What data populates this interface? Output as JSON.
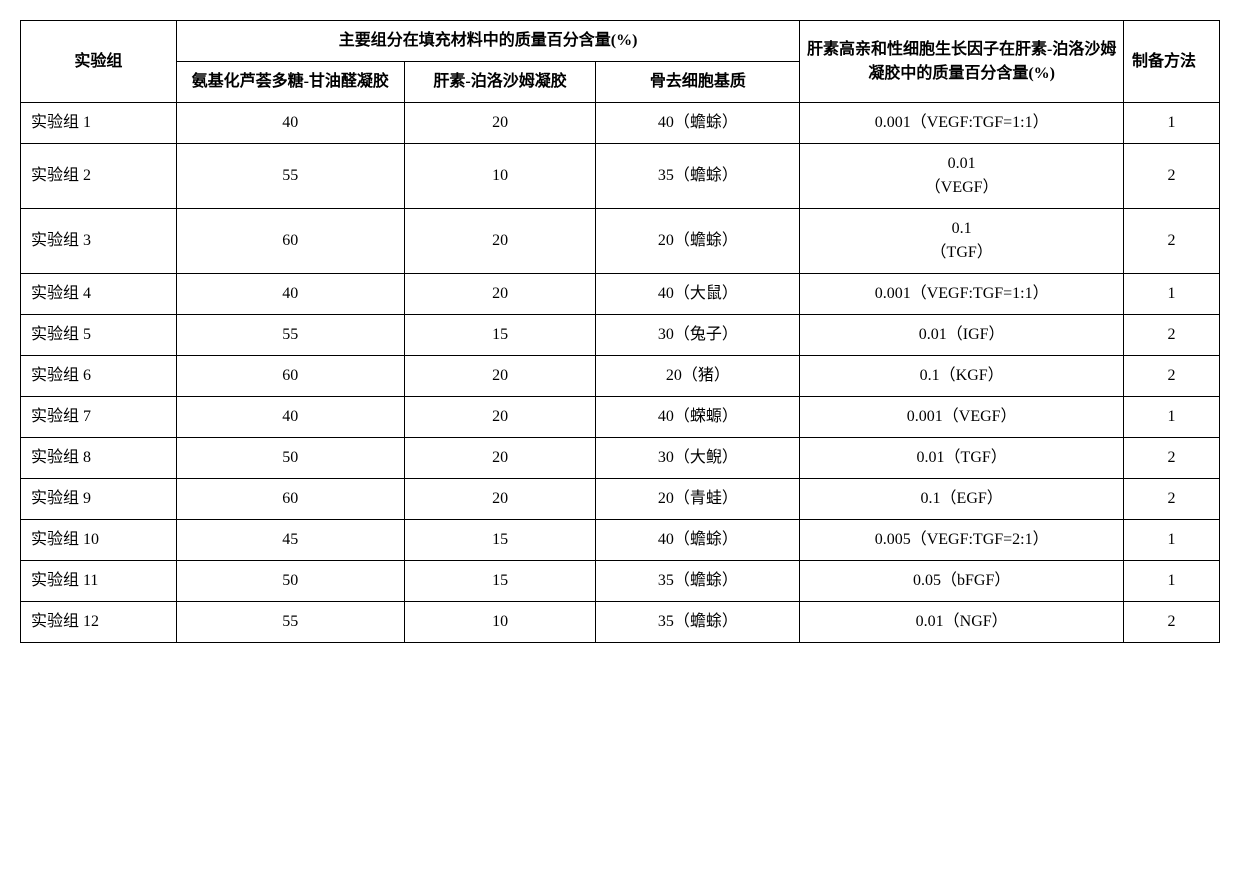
{
  "header": {
    "group": "实验组",
    "mass_title": "主要组分在填充材料中的质量百分含量(%)",
    "col_a": "氨基化芦荟多糖-甘油醛凝胶",
    "col_b": "肝素-泊洛沙姆凝胶",
    "col_c": "骨去细胞基质",
    "col_d": "肝素高亲和性细胞生长因子在肝素-泊洛沙姆凝胶中的质量百分含量(%)",
    "col_e": "制备方法"
  },
  "rows": [
    {
      "group": "实验组 1",
      "a": "40",
      "b": "20",
      "c": "40（蟾蜍）",
      "d": "0.001（VEGF:TGF=1:1）",
      "e": "1"
    },
    {
      "group": "实验组 2",
      "a": "55",
      "b": "10",
      "c": "35（蟾蜍）",
      "d": "0.01\n（VEGF）",
      "e": "2"
    },
    {
      "group": "实验组 3",
      "a": "60",
      "b": "20",
      "c": "20（蟾蜍）",
      "d": "0.1\n（TGF）",
      "e": "2"
    },
    {
      "group": "实验组 4",
      "a": "40",
      "b": "20",
      "c": "40（大鼠）",
      "d": "0.001（VEGF:TGF=1:1）",
      "e": "1"
    },
    {
      "group": "实验组 5",
      "a": "55",
      "b": "15",
      "c": "30（兔子）",
      "d": "0.01（IGF）",
      "e": "2"
    },
    {
      "group": "实验组 6",
      "a": "60",
      "b": "20",
      "c": "20（猪）",
      "d": "0.1（KGF）",
      "e": "2"
    },
    {
      "group": "实验组 7",
      "a": "40",
      "b": "20",
      "c": "40（蝾螈）",
      "d": "0.001（VEGF）",
      "e": "1"
    },
    {
      "group": "实验组 8",
      "a": "50",
      "b": "20",
      "c": "30（大鲵）",
      "d": "0.01（TGF）",
      "e": "2"
    },
    {
      "group": "实验组 9",
      "a": "60",
      "b": "20",
      "c": "20（青蛙）",
      "d": "0.1（EGF）",
      "e": "2"
    },
    {
      "group": "实验组 10",
      "a": "45",
      "b": "15",
      "c": "40（蟾蜍）",
      "d": "0.005（VEGF:TGF=2:1）",
      "e": "1"
    },
    {
      "group": "实验组 11",
      "a": "50",
      "b": "15",
      "c": "35（蟾蜍）",
      "d": "0.05（bFGF）",
      "e": "1"
    },
    {
      "group": "实验组 12",
      "a": "55",
      "b": "10",
      "c": "35（蟾蜍）",
      "d": "0.01（NGF）",
      "e": "2"
    }
  ]
}
